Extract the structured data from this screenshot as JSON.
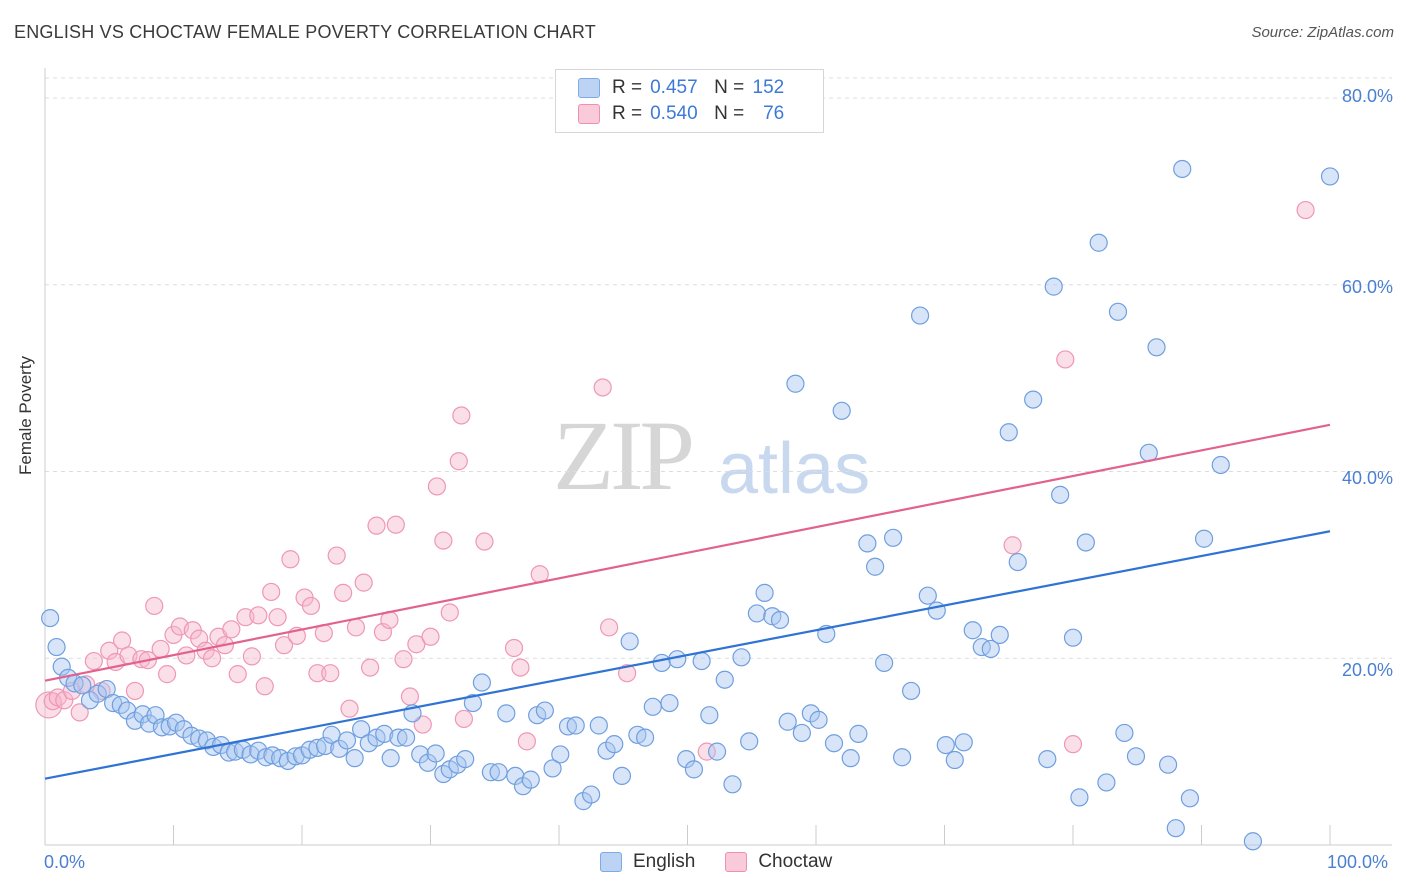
{
  "header": {
    "title": "ENGLISH VS CHOCTAW FEMALE POVERTY CORRELATION CHART",
    "source": "Source: ZipAtlas.com"
  },
  "watermark": {
    "zip": "ZIP",
    "atlas": "atlas"
  },
  "legend_top": {
    "rows": [
      {
        "r_label": "R =",
        "r_value": "0.457",
        "n_label": "N =",
        "n_value": "152",
        "color": "#a9c6ef"
      },
      {
        "r_label": "R =",
        "r_value": "0.540",
        "n_label": "N =",
        "n_value": "76",
        "color": "#f6b8cc"
      }
    ]
  },
  "legend_bottom": {
    "items": [
      {
        "label": "English",
        "color": "#a9c6ef"
      },
      {
        "label": "Choctaw",
        "color": "#f6b8cc"
      }
    ]
  },
  "chart_data": {
    "type": "scatter",
    "title": "ENGLISH VS CHOCTAW FEMALE POVERTY CORRELATION CHART",
    "xlabel": "",
    "ylabel": "Female Poverty",
    "xlim": [
      0,
      100
    ],
    "ylim": [
      0,
      80
    ],
    "x_tick_labels": [
      "0.0%",
      "100.0%"
    ],
    "y_tick_labels": [
      "20.0%",
      "40.0%",
      "60.0%",
      "80.0%"
    ],
    "y_ticks": [
      20,
      40,
      60,
      80
    ],
    "grid": true,
    "legend_position": "top-center",
    "series": [
      {
        "name": "English",
        "color": "#7eaae6",
        "line_color": "#2f73d4",
        "trend": [
          [
            0,
            7.1
          ],
          [
            100,
            33.6
          ]
        ],
        "points": [
          [
            0.4,
            24.3
          ],
          [
            0.9,
            21.2
          ],
          [
            1.3,
            19.1
          ],
          [
            1.8,
            17.9
          ],
          [
            2.3,
            17.3
          ],
          [
            2.9,
            17.1
          ],
          [
            3.5,
            15.5
          ],
          [
            4.1,
            16.2
          ],
          [
            4.8,
            16.7
          ],
          [
            5.3,
            15.2
          ],
          [
            5.9,
            15.0
          ],
          [
            6.4,
            14.4
          ],
          [
            7.0,
            13.3
          ],
          [
            7.6,
            14.0
          ],
          [
            8.1,
            13.0
          ],
          [
            8.6,
            13.9
          ],
          [
            9.1,
            12.6
          ],
          [
            9.7,
            12.7
          ],
          [
            10.2,
            13.1
          ],
          [
            10.8,
            12.4
          ],
          [
            11.4,
            11.7
          ],
          [
            12.0,
            11.4
          ],
          [
            12.6,
            11.2
          ],
          [
            13.1,
            10.5
          ],
          [
            13.7,
            10.7
          ],
          [
            14.3,
            9.9
          ],
          [
            14.8,
            10.0
          ],
          [
            15.4,
            10.2
          ],
          [
            16.0,
            9.7
          ],
          [
            16.6,
            10.1
          ],
          [
            17.2,
            9.4
          ],
          [
            17.7,
            9.6
          ],
          [
            18.3,
            9.3
          ],
          [
            18.9,
            9.0
          ],
          [
            19.5,
            9.5
          ],
          [
            20.0,
            9.6
          ],
          [
            20.6,
            10.2
          ],
          [
            21.2,
            10.4
          ],
          [
            21.8,
            10.6
          ],
          [
            22.3,
            11.8
          ],
          [
            22.9,
            10.3
          ],
          [
            23.5,
            11.2
          ],
          [
            24.1,
            9.3
          ],
          [
            24.6,
            12.4
          ],
          [
            25.2,
            10.9
          ],
          [
            25.8,
            11.5
          ],
          [
            26.4,
            11.9
          ],
          [
            26.9,
            9.3
          ],
          [
            27.5,
            11.5
          ],
          [
            28.1,
            11.5
          ],
          [
            28.6,
            14.1
          ],
          [
            29.2,
            9.7
          ],
          [
            29.8,
            8.8
          ],
          [
            30.4,
            9.8
          ],
          [
            31.0,
            7.6
          ],
          [
            31.5,
            8.1
          ],
          [
            32.1,
            8.6
          ],
          [
            32.7,
            9.2
          ],
          [
            33.3,
            15.2
          ],
          [
            34.0,
            17.4
          ],
          [
            34.7,
            7.8
          ],
          [
            35.3,
            7.8
          ],
          [
            35.9,
            14.1
          ],
          [
            36.6,
            7.4
          ],
          [
            37.2,
            6.3
          ],
          [
            37.8,
            7.0
          ],
          [
            38.3,
            13.9
          ],
          [
            38.9,
            14.4
          ],
          [
            39.5,
            8.2
          ],
          [
            40.1,
            9.7
          ],
          [
            40.7,
            12.7
          ],
          [
            41.3,
            12.8
          ],
          [
            41.9,
            4.7
          ],
          [
            42.5,
            5.4
          ],
          [
            43.1,
            12.8
          ],
          [
            43.7,
            10.1
          ],
          [
            44.3,
            10.8
          ],
          [
            44.9,
            7.4
          ],
          [
            45.5,
            21.8
          ],
          [
            46.1,
            11.8
          ],
          [
            46.7,
            11.5
          ],
          [
            47.3,
            14.8
          ],
          [
            48.0,
            19.5
          ],
          [
            48.6,
            15.2
          ],
          [
            49.2,
            19.9
          ],
          [
            49.9,
            9.2
          ],
          [
            50.5,
            8.1
          ],
          [
            51.1,
            19.7
          ],
          [
            51.7,
            13.9
          ],
          [
            52.3,
            10.0
          ],
          [
            52.9,
            17.7
          ],
          [
            53.5,
            6.5
          ],
          [
            54.2,
            20.1
          ],
          [
            54.8,
            11.1
          ],
          [
            55.4,
            24.8
          ],
          [
            56.0,
            27.0
          ],
          [
            56.6,
            24.5
          ],
          [
            57.2,
            24.1
          ],
          [
            57.8,
            13.2
          ],
          [
            58.4,
            49.4
          ],
          [
            58.9,
            12.0
          ],
          [
            59.6,
            14.1
          ],
          [
            60.2,
            13.4
          ],
          [
            60.8,
            22.6
          ],
          [
            61.4,
            10.9
          ],
          [
            62.0,
            46.5
          ],
          [
            62.7,
            9.3
          ],
          [
            63.3,
            11.9
          ],
          [
            64.0,
            32.3
          ],
          [
            64.6,
            29.8
          ],
          [
            65.3,
            19.5
          ],
          [
            66.0,
            32.9
          ],
          [
            66.7,
            9.4
          ],
          [
            67.4,
            16.5
          ],
          [
            68.1,
            56.7
          ],
          [
            68.7,
            26.7
          ],
          [
            69.4,
            25.1
          ],
          [
            70.1,
            10.7
          ],
          [
            70.8,
            9.1
          ],
          [
            71.5,
            11.0
          ],
          [
            72.2,
            23.0
          ],
          [
            72.9,
            21.2
          ],
          [
            73.6,
            21.0
          ],
          [
            74.3,
            22.5
          ],
          [
            75.0,
            44.2
          ],
          [
            75.7,
            30.3
          ],
          [
            76.9,
            47.7
          ],
          [
            78.0,
            9.2
          ],
          [
            78.5,
            59.8
          ],
          [
            79.0,
            37.5
          ],
          [
            80.0,
            22.2
          ],
          [
            80.5,
            5.1
          ],
          [
            81.0,
            32.4
          ],
          [
            82.0,
            64.5
          ],
          [
            82.6,
            6.7
          ],
          [
            83.5,
            57.1
          ],
          [
            84.0,
            12.0
          ],
          [
            84.9,
            9.5
          ],
          [
            85.9,
            42.0
          ],
          [
            86.5,
            53.3
          ],
          [
            87.4,
            8.6
          ],
          [
            88.0,
            1.8
          ],
          [
            88.5,
            72.4
          ],
          [
            89.1,
            5.0
          ],
          [
            90.2,
            32.8
          ],
          [
            91.5,
            40.7
          ],
          [
            94.0,
            0.4
          ],
          [
            100.0,
            71.6
          ]
        ]
      },
      {
        "name": "Choctaw",
        "color": "#f4a9c2",
        "line_color": "#e2628e",
        "trend": [
          [
            0,
            17.6
          ],
          [
            100,
            45.0
          ]
        ],
        "points": [
          [
            0.3,
            15.0
          ],
          [
            0.6,
            15.4
          ],
          [
            1.0,
            15.8
          ],
          [
            1.5,
            15.5
          ],
          [
            2.1,
            16.5
          ],
          [
            2.7,
            14.2
          ],
          [
            3.2,
            17.2
          ],
          [
            3.8,
            19.7
          ],
          [
            4.4,
            16.5
          ],
          [
            5.0,
            20.8
          ],
          [
            5.5,
            19.6
          ],
          [
            6.0,
            21.9
          ],
          [
            6.5,
            20.3
          ],
          [
            7.0,
            16.5
          ],
          [
            7.5,
            19.9
          ],
          [
            8.0,
            19.8
          ],
          [
            8.5,
            25.6
          ],
          [
            9.0,
            21.0
          ],
          [
            9.5,
            18.3
          ],
          [
            10.0,
            22.5
          ],
          [
            10.5,
            23.4
          ],
          [
            11.0,
            20.3
          ],
          [
            11.5,
            23.0
          ],
          [
            12.0,
            22.1
          ],
          [
            12.5,
            20.8
          ],
          [
            13.0,
            20.0
          ],
          [
            13.5,
            22.3
          ],
          [
            14.0,
            21.4
          ],
          [
            14.5,
            23.1
          ],
          [
            15.0,
            18.3
          ],
          [
            15.6,
            24.4
          ],
          [
            16.1,
            20.2
          ],
          [
            16.6,
            24.6
          ],
          [
            17.1,
            17.0
          ],
          [
            17.6,
            27.1
          ],
          [
            18.1,
            24.4
          ],
          [
            18.6,
            21.4
          ],
          [
            19.1,
            30.6
          ],
          [
            19.6,
            22.4
          ],
          [
            20.2,
            26.5
          ],
          [
            20.7,
            25.6
          ],
          [
            21.2,
            18.4
          ],
          [
            21.7,
            22.7
          ],
          [
            22.2,
            18.4
          ],
          [
            22.7,
            31.0
          ],
          [
            23.2,
            27.0
          ],
          [
            23.7,
            14.6
          ],
          [
            24.2,
            23.3
          ],
          [
            24.8,
            28.1
          ],
          [
            25.3,
            19.0
          ],
          [
            25.8,
            34.2
          ],
          [
            26.3,
            22.8
          ],
          [
            26.8,
            24.1
          ],
          [
            27.3,
            34.3
          ],
          [
            27.9,
            19.9
          ],
          [
            28.4,
            15.9
          ],
          [
            28.9,
            21.5
          ],
          [
            29.4,
            12.9
          ],
          [
            30.0,
            22.3
          ],
          [
            30.5,
            38.4
          ],
          [
            31.0,
            32.6
          ],
          [
            31.5,
            24.9
          ],
          [
            32.2,
            41.1
          ],
          [
            32.4,
            46.0
          ],
          [
            32.6,
            13.5
          ],
          [
            34.2,
            32.5
          ],
          [
            36.5,
            21.1
          ],
          [
            37.0,
            19.0
          ],
          [
            37.5,
            11.1
          ],
          [
            38.5,
            29.0
          ],
          [
            43.4,
            49.0
          ],
          [
            43.9,
            23.3
          ],
          [
            45.3,
            18.4
          ],
          [
            51.5,
            10.0
          ],
          [
            75.3,
            32.1
          ],
          [
            79.4,
            52.0
          ],
          [
            80.0,
            10.8
          ],
          [
            98.1,
            68.0
          ]
        ]
      }
    ]
  }
}
